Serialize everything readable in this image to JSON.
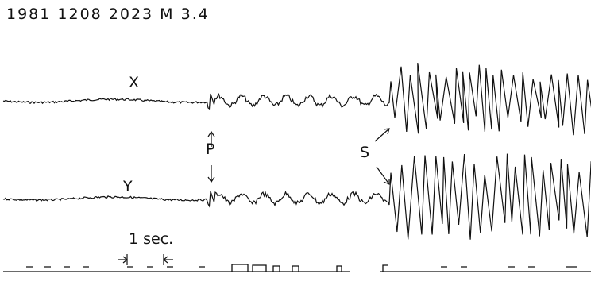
{
  "header": {
    "title": "1981 1208 2023 M 3.4"
  },
  "traces": [
    {
      "label": "X"
    },
    {
      "label": "Y"
    }
  ],
  "phases": {
    "p": "P",
    "s": "S"
  },
  "scale": {
    "label": "1 sec."
  }
}
